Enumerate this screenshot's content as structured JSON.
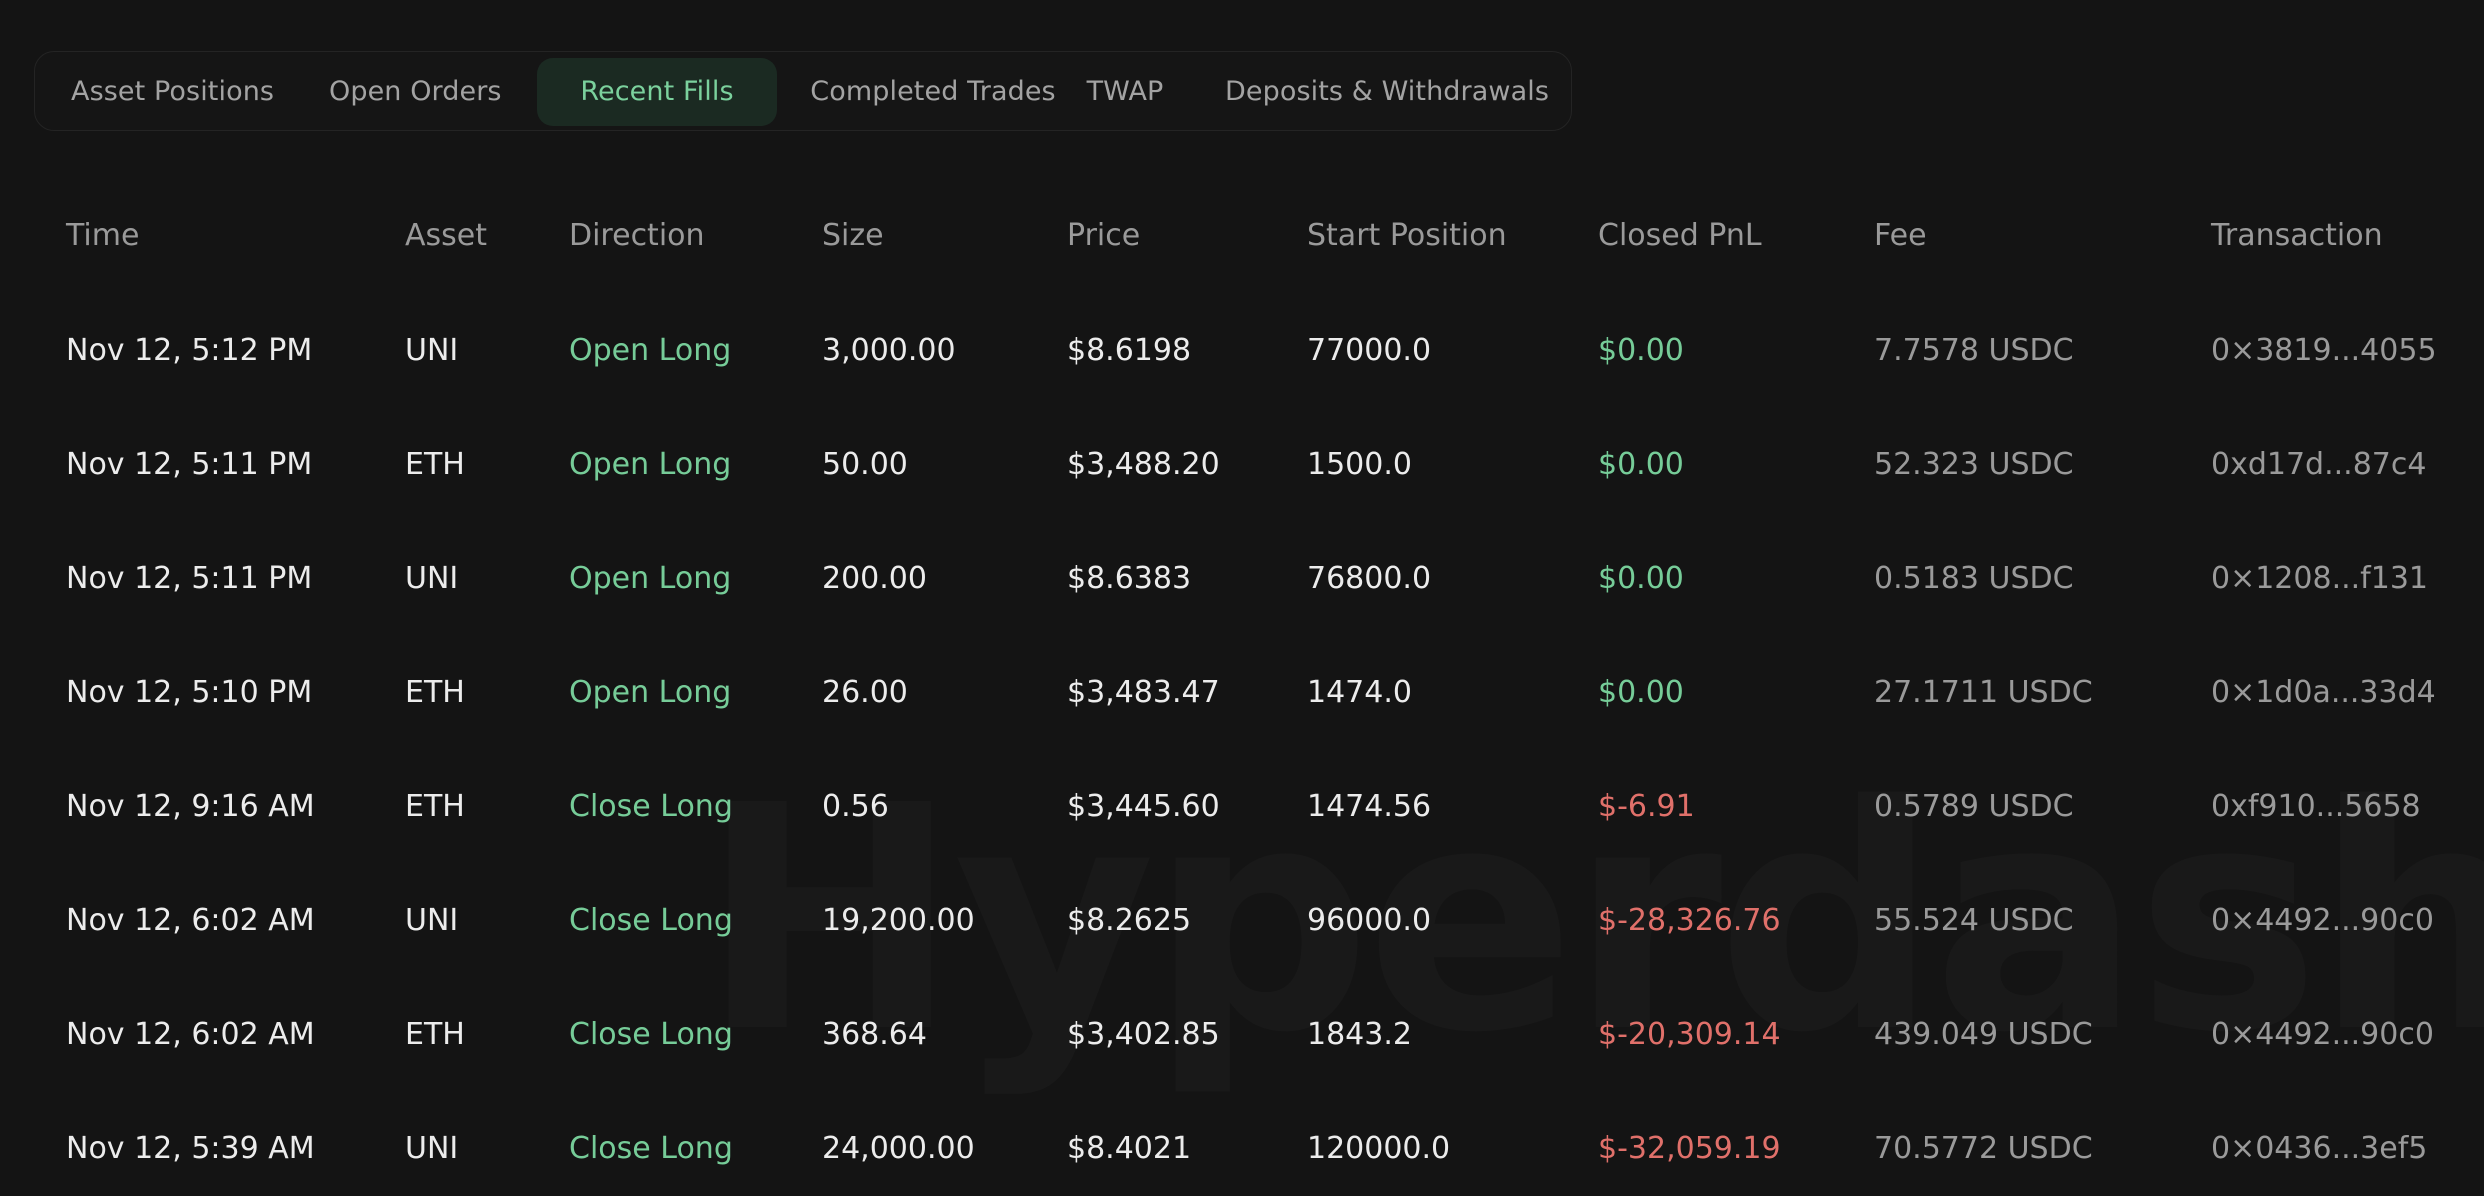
{
  "tabs": [
    {
      "label": "Asset Positions",
      "active": false
    },
    {
      "label": "Open Orders",
      "active": false
    },
    {
      "label": "Recent Fills",
      "active": true
    },
    {
      "label": "Completed Trades",
      "active": false
    },
    {
      "label": "TWAP",
      "active": false
    },
    {
      "label": "Deposits & Withdrawals",
      "active": false
    }
  ],
  "watermark": "Hyperdash",
  "table": {
    "columns": [
      "Time",
      "Asset",
      "Direction",
      "Size",
      "Price",
      "Start Position",
      "Closed PnL",
      "Fee",
      "Transaction"
    ],
    "rows": [
      {
        "time": "Nov 12, 5:12 PM",
        "asset": "UNI",
        "direction": "Open Long",
        "size": "3,000.00",
        "price": "$8.6198",
        "start_position": "77000.0",
        "closed_pnl": "$0.00",
        "pnl_sign": "pos",
        "fee": "7.7578 USDC",
        "transaction": "0×3819...4055"
      },
      {
        "time": "Nov 12, 5:11 PM",
        "asset": "ETH",
        "direction": "Open Long",
        "size": "50.00",
        "price": "$3,488.20",
        "start_position": "1500.0",
        "closed_pnl": "$0.00",
        "pnl_sign": "pos",
        "fee": "52.323 USDC",
        "transaction": "0xd17d...87c4"
      },
      {
        "time": "Nov 12, 5:11 PM",
        "asset": "UNI",
        "direction": "Open Long",
        "size": "200.00",
        "price": "$8.6383",
        "start_position": "76800.0",
        "closed_pnl": "$0.00",
        "pnl_sign": "pos",
        "fee": "0.5183 USDC",
        "transaction": "0×1208...f131"
      },
      {
        "time": "Nov 12, 5:10 PM",
        "asset": "ETH",
        "direction": "Open Long",
        "size": "26.00",
        "price": "$3,483.47",
        "start_position": "1474.0",
        "closed_pnl": "$0.00",
        "pnl_sign": "pos",
        "fee": "27.1711 USDC",
        "transaction": "0×1d0a...33d4"
      },
      {
        "time": "Nov 12, 9:16 AM",
        "asset": "ETH",
        "direction": "Close Long",
        "size": "0.56",
        "price": "$3,445.60",
        "start_position": "1474.56",
        "closed_pnl": "$-6.91",
        "pnl_sign": "neg",
        "fee": "0.5789 USDC",
        "transaction": "0xf910...5658"
      },
      {
        "time": "Nov 12, 6:02 AM",
        "asset": "UNI",
        "direction": "Close Long",
        "size": "19,200.00",
        "price": "$8.2625",
        "start_position": "96000.0",
        "closed_pnl": "$-28,326.76",
        "pnl_sign": "neg",
        "fee": "55.524 USDC",
        "transaction": "0×4492...90c0"
      },
      {
        "time": "Nov 12, 6:02 AM",
        "asset": "ETH",
        "direction": "Close Long",
        "size": "368.64",
        "price": "$3,402.85",
        "start_position": "1843.2",
        "closed_pnl": "$-20,309.14",
        "pnl_sign": "neg",
        "fee": "439.049 USDC",
        "transaction": "0×4492...90c0"
      },
      {
        "time": "Nov 12, 5:39 AM",
        "asset": "UNI",
        "direction": "Close Long",
        "size": "24,000.00",
        "price": "$8.4021",
        "start_position": "120000.0",
        "closed_pnl": "$-32,059.19",
        "pnl_sign": "neg",
        "fee": "70.5772 USDC",
        "transaction": "0×0436...3ef5"
      }
    ]
  },
  "colors": {
    "background": "#141414",
    "positive": "#76cc98",
    "negative": "#e0706a",
    "muted": "#9a9a9a",
    "text": "#ececec",
    "active_tab_bg": "#1b2a22"
  }
}
